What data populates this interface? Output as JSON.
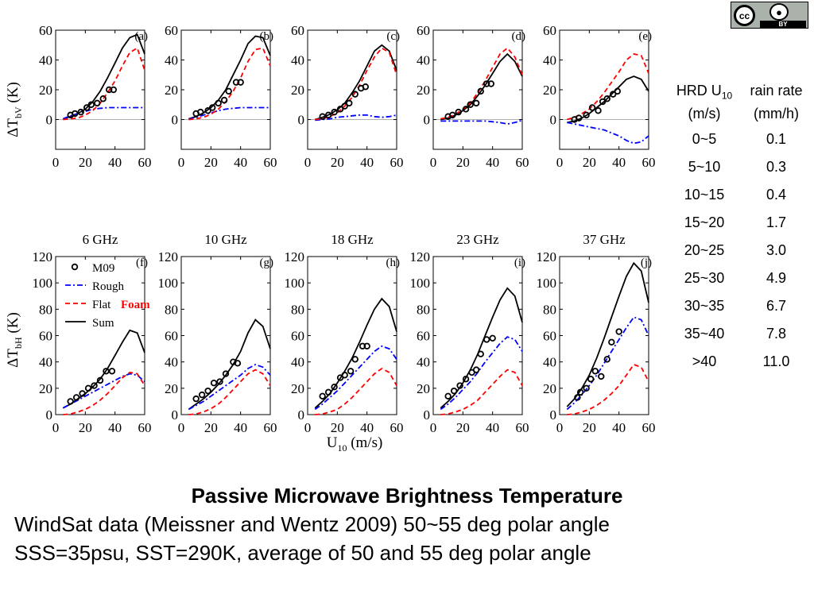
{
  "cc_badge": {
    "cc_text": "cc",
    "by_icon": "person-icon",
    "by_text": "BY"
  },
  "table": {
    "col1_header_line1": "HRD U",
    "col1_header_sub": "10",
    "col1_header_line2": "(m/s)",
    "col2_header_line1": "rain rate",
    "col2_header_line2": "(mm/h)",
    "rows": [
      {
        "u10": "0~5",
        "rain": "0.1"
      },
      {
        "u10": "5~10",
        "rain": "0.3"
      },
      {
        "u10": "10~15",
        "rain": "0.4"
      },
      {
        "u10": "15~20",
        "rain": "1.7"
      },
      {
        "u10": "20~25",
        "rain": "3.0"
      },
      {
        "u10": "25~30",
        "rain": "4.9"
      },
      {
        "u10": "30~35",
        "rain": "6.7"
      },
      {
        "u10": "35~40",
        "rain": "7.8"
      },
      {
        "u10": ">40",
        "rain": "11.0"
      }
    ]
  },
  "captions": {
    "title": "Passive Microwave Brightness Temperature",
    "line1": "WindSat data (Meissner and Wentz 2009) 50~55 deg polar angle",
    "line2": "SSS=35psu, SST=290K, average of 50 and 55 deg polar angle"
  },
  "figure": {
    "frequencies": [
      "6 GHz",
      "10 GHz",
      "18 GHz",
      "23 GHz",
      "37 GHz"
    ],
    "ylabel_top": {
      "delta": "ΔT",
      "sub": "bV",
      "unit": " (K)"
    },
    "ylabel_bottom": {
      "delta": "ΔT",
      "sub": "bH",
      "unit": " (K)"
    },
    "xlabel": {
      "main": "U",
      "sub": "10",
      "unit": " (m/s)"
    },
    "legend": [
      "M09",
      "Rough",
      "Flat",
      "Sum"
    ],
    "legend_annotation": "Foam",
    "colors": {
      "sum": "#000000",
      "rough": "#0000ff",
      "flat": "#ff0000",
      "obs": "#000000",
      "foam": "#ff0000"
    }
  },
  "chart_data": [
    {
      "type": "line",
      "panel": "(a)",
      "xlim": [
        0,
        60
      ],
      "ylim": [
        -20,
        60
      ],
      "yticks": [
        0,
        20,
        40,
        60
      ],
      "xticks": [
        0,
        20,
        40,
        60
      ],
      "x": [
        5,
        10,
        15,
        20,
        25,
        30,
        35,
        40,
        45,
        50,
        55,
        60
      ],
      "series": [
        {
          "name": "Sum",
          "values": [
            0.5,
            2,
            4,
            7,
            12,
            19,
            28,
            38,
            48,
            55,
            57,
            44
          ]
        },
        {
          "name": "Rough",
          "values": [
            0.5,
            2.5,
            4,
            5.5,
            7,
            7.5,
            8,
            8,
            8,
            8,
            8,
            8
          ]
        },
        {
          "name": "Flat",
          "values": [
            0,
            0.5,
            1,
            3,
            6,
            11,
            18,
            26,
            36,
            45,
            48,
            33
          ]
        }
      ],
      "obs": {
        "name": "M09",
        "x": [
          10,
          13,
          17,
          21,
          24,
          28,
          32,
          36,
          39
        ],
        "y": [
          3,
          4,
          5,
          8,
          10,
          11,
          14,
          20,
          20
        ]
      }
    },
    {
      "type": "line",
      "panel": "(b)",
      "xlim": [
        0,
        60
      ],
      "ylim": [
        -20,
        60
      ],
      "yticks": [
        0,
        20,
        40,
        60
      ],
      "xticks": [
        0,
        20,
        40,
        60
      ],
      "x": [
        5,
        10,
        15,
        20,
        25,
        30,
        35,
        40,
        45,
        50,
        55,
        60
      ],
      "series": [
        {
          "name": "Sum",
          "values": [
            0.5,
            2,
            4.5,
            8,
            13,
            20,
            30,
            40,
            51,
            56,
            55,
            43
          ]
        },
        {
          "name": "Rough",
          "values": [
            0.3,
            1.5,
            3,
            4.5,
            6,
            7,
            7.5,
            8,
            8,
            8,
            8,
            8
          ]
        },
        {
          "name": "Flat",
          "values": [
            0,
            0.5,
            1.5,
            3.5,
            7,
            12,
            19,
            28,
            39,
            47,
            48,
            36
          ]
        }
      ],
      "obs": {
        "name": "M09",
        "x": [
          10,
          13,
          18,
          21,
          25,
          29,
          32,
          37,
          40
        ],
        "y": [
          4,
          5,
          6,
          8,
          11,
          13,
          19,
          25,
          25
        ]
      }
    },
    {
      "type": "line",
      "panel": "(c)",
      "xlim": [
        0,
        60
      ],
      "ylim": [
        -20,
        60
      ],
      "yticks": [
        0,
        20,
        40,
        60
      ],
      "xticks": [
        0,
        20,
        40,
        60
      ],
      "x": [
        5,
        10,
        15,
        20,
        25,
        30,
        35,
        40,
        45,
        50,
        55,
        60
      ],
      "series": [
        {
          "name": "Sum",
          "values": [
            0,
            1.5,
            3.5,
            6.5,
            11,
            18,
            26,
            36,
            46,
            50,
            46,
            33
          ]
        },
        {
          "name": "Rough",
          "values": [
            -0.5,
            0,
            0.5,
            1.5,
            2,
            2.5,
            3,
            3,
            2,
            1.5,
            2,
            3
          ]
        },
        {
          "name": "Flat",
          "values": [
            0,
            0.5,
            2,
            4.5,
            9,
            15,
            23,
            33,
            42,
            48,
            45,
            30
          ]
        }
      ],
      "obs": {
        "name": "M09",
        "x": [
          10,
          14,
          18,
          22,
          25,
          28,
          32,
          36,
          39
        ],
        "y": [
          2,
          3,
          5,
          7,
          9,
          11,
          17,
          21,
          22
        ]
      }
    },
    {
      "type": "line",
      "panel": "(d)",
      "xlim": [
        0,
        60
      ],
      "ylim": [
        -20,
        60
      ],
      "yticks": [
        0,
        20,
        40,
        60
      ],
      "xticks": [
        0,
        20,
        40,
        60
      ],
      "x": [
        5,
        10,
        15,
        20,
        25,
        30,
        35,
        40,
        45,
        50,
        55,
        60
      ],
      "series": [
        {
          "name": "Sum",
          "values": [
            0,
            1,
            3,
            6,
            10,
            16,
            23,
            31,
            39,
            44,
            39,
            29
          ]
        },
        {
          "name": "Rough",
          "values": [
            -1,
            -1,
            -1,
            -1,
            -1,
            -1,
            -1,
            -1.5,
            -2,
            -3,
            -2,
            -0.5
          ]
        },
        {
          "name": "Flat",
          "values": [
            0.5,
            1.5,
            3.5,
            7,
            11,
            18,
            26,
            35,
            44,
            48,
            42,
            30
          ]
        }
      ],
      "obs": {
        "name": "M09",
        "x": [
          10,
          13,
          17,
          22,
          25,
          29,
          32,
          36,
          39
        ],
        "y": [
          2,
          3,
          5,
          7,
          10,
          11,
          19,
          24,
          24
        ]
      }
    },
    {
      "type": "line",
      "panel": "(e)",
      "xlim": [
        0,
        60
      ],
      "ylim": [
        -20,
        60
      ],
      "yticks": [
        0,
        20,
        40,
        60
      ],
      "xticks": [
        0,
        20,
        40,
        60
      ],
      "x": [
        5,
        10,
        15,
        20,
        25,
        30,
        35,
        40,
        45,
        50,
        55,
        60
      ],
      "series": [
        {
          "name": "Sum",
          "values": [
            -2,
            -1,
            1,
            4,
            8,
            12,
            17,
            22,
            27,
            29,
            27,
            19
          ]
        },
        {
          "name": "Rough",
          "values": [
            -2,
            -3,
            -4,
            -5,
            -6,
            -7,
            -9,
            -11,
            -14,
            -16,
            -15,
            -11
          ]
        },
        {
          "name": "Flat",
          "values": [
            0,
            1.5,
            4,
            7,
            12,
            18,
            25,
            32,
            40,
            44,
            43,
            31
          ]
        }
      ],
      "obs": {
        "name": "M09",
        "x": [
          10,
          13,
          18,
          22,
          26,
          29,
          32,
          36,
          39
        ],
        "y": [
          0,
          1,
          3,
          8,
          6,
          12,
          14,
          17,
          19
        ]
      }
    },
    {
      "type": "line",
      "panel": "(f)",
      "xlim": [
        0,
        60
      ],
      "ylim": [
        0,
        120
      ],
      "yticks": [
        0,
        20,
        40,
        60,
        80,
        100,
        120
      ],
      "xticks": [
        0,
        20,
        40,
        60
      ],
      "x": [
        5,
        10,
        15,
        20,
        25,
        30,
        35,
        40,
        45,
        50,
        55,
        60
      ],
      "series": [
        {
          "name": "Sum",
          "values": [
            5,
            8,
            12,
            16,
            21,
            27,
            35,
            45,
            55,
            64,
            62,
            47
          ]
        },
        {
          "name": "Rough",
          "values": [
            5,
            8,
            11,
            14,
            17,
            20,
            23,
            26,
            29,
            31,
            30,
            25
          ]
        },
        {
          "name": "Flat",
          "values": [
            0,
            0.5,
            2,
            4,
            7,
            11,
            16,
            22,
            28,
            32,
            31,
            22
          ]
        }
      ],
      "obs": {
        "name": "M09",
        "x": [
          10,
          14,
          18,
          22,
          26,
          30,
          34,
          38
        ],
        "y": [
          10,
          13,
          16,
          20,
          22,
          26,
          33,
          33
        ]
      }
    },
    {
      "type": "line",
      "panel": "(g)",
      "xlim": [
        0,
        60
      ],
      "ylim": [
        0,
        120
      ],
      "yticks": [
        0,
        20,
        40,
        60,
        80,
        100,
        120
      ],
      "xticks": [
        0,
        20,
        40,
        60
      ],
      "x": [
        5,
        10,
        15,
        20,
        25,
        30,
        35,
        40,
        45,
        50,
        55,
        60
      ],
      "series": [
        {
          "name": "Sum",
          "values": [
            4,
            8,
            12,
            17,
            23,
            30,
            38,
            48,
            62,
            72,
            67,
            50
          ]
        },
        {
          "name": "Rough",
          "values": [
            4,
            7,
            10,
            14,
            18,
            22,
            26,
            30,
            35,
            38,
            36,
            30
          ]
        },
        {
          "name": "Flat",
          "values": [
            0,
            0.5,
            2,
            4.5,
            8,
            13,
            19,
            25,
            31,
            34,
            31,
            22
          ]
        }
      ],
      "obs": {
        "name": "M09",
        "x": [
          10,
          14,
          18,
          22,
          26,
          30,
          35,
          38
        ],
        "y": [
          12,
          15,
          18,
          24,
          25,
          31,
          40,
          39
        ]
      }
    },
    {
      "type": "line",
      "panel": "(h)",
      "xlim": [
        0,
        60
      ],
      "ylim": [
        0,
        120
      ],
      "yticks": [
        0,
        20,
        40,
        60,
        80,
        100,
        120
      ],
      "xticks": [
        0,
        20,
        40,
        60
      ],
      "x": [
        5,
        10,
        15,
        20,
        25,
        30,
        35,
        40,
        45,
        50,
        55,
        60
      ],
      "series": [
        {
          "name": "Sum",
          "values": [
            5,
            10,
            16,
            24,
            33,
            43,
            55,
            68,
            80,
            88,
            82,
            63
          ]
        },
        {
          "name": "Rough",
          "values": [
            4,
            8,
            13,
            18,
            24,
            30,
            36,
            42,
            48,
            52,
            50,
            42
          ]
        },
        {
          "name": "Flat",
          "values": [
            0,
            0.5,
            2,
            4,
            8,
            13,
            19,
            25,
            31,
            35,
            32,
            22
          ]
        }
      ],
      "obs": {
        "name": "M09",
        "x": [
          10,
          14,
          18,
          22,
          25,
          29,
          32,
          37,
          40
        ],
        "y": [
          14,
          17,
          21,
          28,
          30,
          33,
          42,
          52,
          52
        ]
      }
    },
    {
      "type": "line",
      "panel": "(i)",
      "xlim": [
        0,
        60
      ],
      "ylim": [
        0,
        120
      ],
      "yticks": [
        0,
        20,
        40,
        60,
        80,
        100,
        120
      ],
      "xticks": [
        0,
        20,
        40,
        60
      ],
      "x": [
        5,
        10,
        15,
        20,
        25,
        30,
        35,
        40,
        45,
        50,
        55,
        60
      ],
      "series": [
        {
          "name": "Sum",
          "values": [
            5,
            10,
            16,
            24,
            34,
            46,
            60,
            74,
            87,
            96,
            90,
            70
          ]
        },
        {
          "name": "Rough",
          "values": [
            4,
            8,
            13,
            19,
            25,
            32,
            40,
            47,
            54,
            59,
            57,
            48
          ]
        },
        {
          "name": "Flat",
          "values": [
            0,
            0.5,
            2,
            4,
            7,
            11,
            17,
            23,
            29,
            34,
            32,
            22
          ]
        }
      ],
      "obs": {
        "name": "M09",
        "x": [
          10,
          14,
          18,
          22,
          26,
          29,
          32,
          36,
          40
        ],
        "y": [
          14,
          18,
          22,
          27,
          32,
          34,
          46,
          57,
          58
        ]
      }
    },
    {
      "type": "line",
      "panel": "(j)",
      "xlim": [
        0,
        60
      ],
      "ylim": [
        0,
        120
      ],
      "yticks": [
        0,
        20,
        40,
        60,
        80,
        100,
        120
      ],
      "xticks": [
        0,
        20,
        40,
        60
      ],
      "x": [
        5,
        10,
        15,
        20,
        25,
        30,
        35,
        40,
        45,
        50,
        55,
        60
      ],
      "series": [
        {
          "name": "Sum",
          "values": [
            6,
            12,
            20,
            30,
            43,
            58,
            74,
            90,
            105,
            115,
            109,
            85
          ]
        },
        {
          "name": "Rough",
          "values": [
            4,
            9,
            15,
            22,
            30,
            39,
            48,
            57,
            66,
            74,
            72,
            60
          ]
        },
        {
          "name": "Flat",
          "values": [
            0,
            0.5,
            2,
            4,
            7,
            11,
            16,
            22,
            30,
            38,
            36,
            25
          ]
        }
      ],
      "obs": {
        "name": "M09",
        "x": [
          12,
          14,
          18,
          21,
          24,
          28,
          32,
          35,
          40
        ],
        "y": [
          13,
          17,
          20,
          27,
          33,
          29,
          42,
          55,
          63
        ]
      }
    }
  ]
}
